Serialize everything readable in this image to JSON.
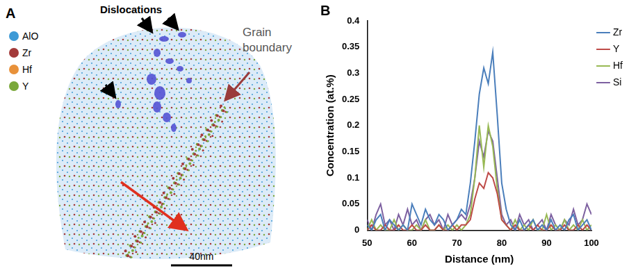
{
  "panel_a": {
    "panel": "A",
    "species": [
      {
        "label": "AlO",
        "color": "#3d9ad6"
      },
      {
        "label": "Zr",
        "color": "#a33a3a"
      },
      {
        "label": "Hf",
        "color": "#e8913a"
      },
      {
        "label": "Y",
        "color": "#7aa83a"
      }
    ],
    "dislocations_label": "Dislocations",
    "grain_boundary_label": "Grain boundary",
    "scale_bar": "40nm"
  },
  "chart_data": {
    "panel": "B",
    "type": "line",
    "x_label": "Distance (nm)",
    "y_label": "Concentration (at.%)",
    "x": [
      50,
      51,
      52,
      53,
      54,
      55,
      56,
      57,
      58,
      59,
      60,
      61,
      62,
      63,
      64,
      65,
      66,
      67,
      68,
      69,
      70,
      71,
      72,
      73,
      74,
      75,
      76,
      77,
      78,
      79,
      80,
      81,
      82,
      83,
      84,
      85,
      86,
      87,
      88,
      89,
      90,
      91,
      92,
      93,
      94,
      95,
      96,
      97,
      98,
      99,
      100
    ],
    "series": [
      {
        "name": "Zr",
        "color": "#4a7ebb",
        "values": [
          0.01,
          0,
          0.02,
          0.03,
          0,
          0.02,
          0.01,
          0,
          0.01,
          0,
          0.05,
          0.03,
          0.01,
          0.04,
          0.02,
          0.01,
          0.03,
          0.02,
          0,
          0.01,
          0.02,
          0.04,
          0.03,
          0.09,
          0.17,
          0.26,
          0.31,
          0.28,
          0.34,
          0.22,
          0.09,
          0.04,
          0.01,
          0,
          0.02,
          0,
          0.01,
          0.02,
          0,
          0.01,
          0,
          0.02,
          0,
          0.01,
          0,
          0.02,
          0.03,
          0,
          0.01,
          0.02,
          0
        ]
      },
      {
        "name": "Y",
        "color": "#be4b48",
        "values": [
          0,
          0.01,
          0,
          0,
          0.01,
          0,
          0,
          0.01,
          0,
          0,
          0.01,
          0,
          0,
          0.01,
          0,
          0,
          0.01,
          0,
          0,
          0.01,
          0,
          0.01,
          0.01,
          0.02,
          0.06,
          0.09,
          0.08,
          0.11,
          0.1,
          0.07,
          0.02,
          0.01,
          0,
          0.01,
          0,
          0,
          0.01,
          0,
          0.01,
          0,
          0,
          0.01,
          0,
          0,
          0.01,
          0,
          0,
          0.01,
          0,
          0.01,
          0
        ]
      },
      {
        "name": "Hf",
        "color": "#98b954",
        "values": [
          0,
          0.02,
          0,
          0.01,
          0,
          0,
          0.02,
          0,
          0.01,
          0,
          0,
          0.01,
          0,
          0.02,
          0,
          0,
          0.01,
          0,
          0.01,
          0,
          0.01,
          0,
          0.01,
          0.03,
          0.1,
          0.2,
          0.12,
          0.2,
          0.16,
          0.08,
          0.02,
          0.01,
          0,
          0.02,
          0,
          0.01,
          0,
          0.02,
          0,
          0,
          0.03,
          0,
          0.01,
          0,
          0.02,
          0,
          0.01,
          0,
          0.02,
          0,
          0.01
        ]
      },
      {
        "name": "Si",
        "color": "#7d60a0",
        "values": [
          0.02,
          0,
          0.03,
          0.05,
          0.01,
          0.02,
          0,
          0.03,
          0.01,
          0.04,
          0.01,
          0.02,
          0,
          0.02,
          0.03,
          0.01,
          0.02,
          0,
          0.03,
          0.01,
          0.02,
          0.03,
          0.02,
          0.05,
          0.1,
          0.17,
          0.14,
          0.19,
          0.17,
          0.1,
          0.03,
          0.01,
          0.02,
          0,
          0.03,
          0.01,
          0.02,
          0,
          0.01,
          0.02,
          0,
          0.03,
          0.01,
          0,
          0.02,
          0.01,
          0.04,
          0.01,
          0.02,
          0.05,
          0.03
        ]
      }
    ],
    "xlim": [
      50,
      100
    ],
    "xticks": [
      50,
      60,
      70,
      80,
      90,
      100
    ],
    "ylim": [
      0,
      0.4
    ],
    "yticks": [
      0,
      0.05,
      0.1,
      0.15,
      0.2,
      0.25,
      0.3,
      0.35,
      0.4
    ],
    "grid": false,
    "legend": "right"
  }
}
